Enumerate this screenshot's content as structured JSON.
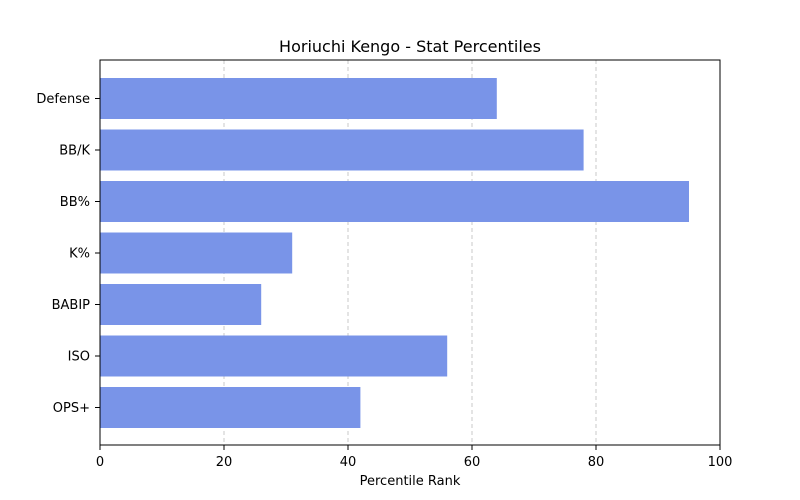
{
  "chart_data": {
    "type": "bar",
    "orientation": "horizontal",
    "title": "Horiuchi Kengo - Stat Percentiles",
    "xlabel": "Percentile Rank",
    "ylabel": "",
    "xlim": [
      0,
      100
    ],
    "xticks": [
      0,
      20,
      40,
      60,
      80,
      100
    ],
    "categories": [
      "Defense",
      "BB/K",
      "BB%",
      "K%",
      "BABIP",
      "ISO",
      "OPS+"
    ],
    "values": [
      64,
      78,
      95,
      31,
      26,
      56,
      42
    ],
    "bar_color": "#7994e8",
    "grid": "x-axis dashed",
    "legend": "none"
  }
}
